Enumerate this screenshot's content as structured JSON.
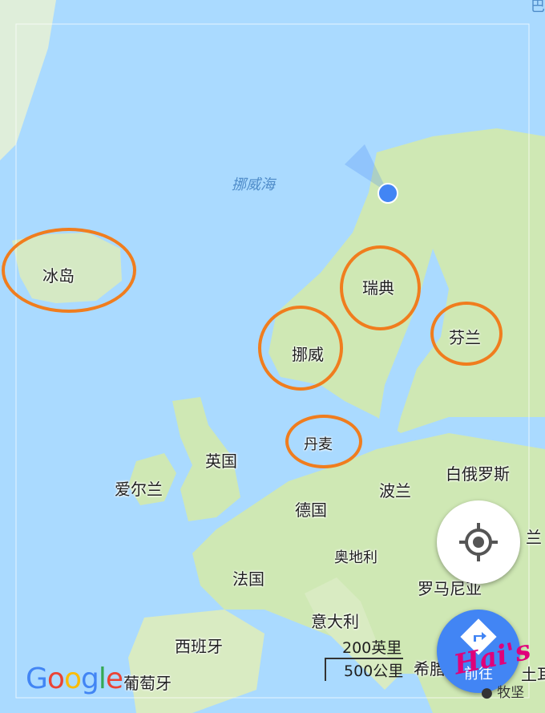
{
  "map": {
    "sea_label": "挪威海",
    "countries": {
      "iceland": "冰岛",
      "sweden": "瑞典",
      "finland": "芬兰",
      "norway": "挪威",
      "denmark": "丹麦",
      "uk": "英国",
      "ireland": "爱尔兰",
      "belarus": "白俄罗斯",
      "poland": "波兰",
      "germany": "德国",
      "austria": "奥地利",
      "france": "法国",
      "romania": "罗马尼亚",
      "italy": "意大利",
      "spain": "西班牙",
      "portugal": "葡萄牙",
      "greece": "希腊",
      "partial_right_1": "兰",
      "partial_right_2": "土耳",
      "partial_top": "巴"
    },
    "scale": {
      "imperial": "200英里",
      "metric": "500公里"
    },
    "colors": {
      "water": "#aadaff",
      "land": "#cfe8b4",
      "highlight": "#f07d1e",
      "accent": "#4285f4"
    }
  },
  "controls": {
    "locate_icon": "crosshair-icon",
    "navigate_label": "前往",
    "navigate_icon": "directions-icon"
  },
  "branding": {
    "google": [
      "G",
      "o",
      "o",
      "g",
      "l",
      "e"
    ],
    "watermark": "Hai's",
    "wechat_account": "牧坚"
  }
}
